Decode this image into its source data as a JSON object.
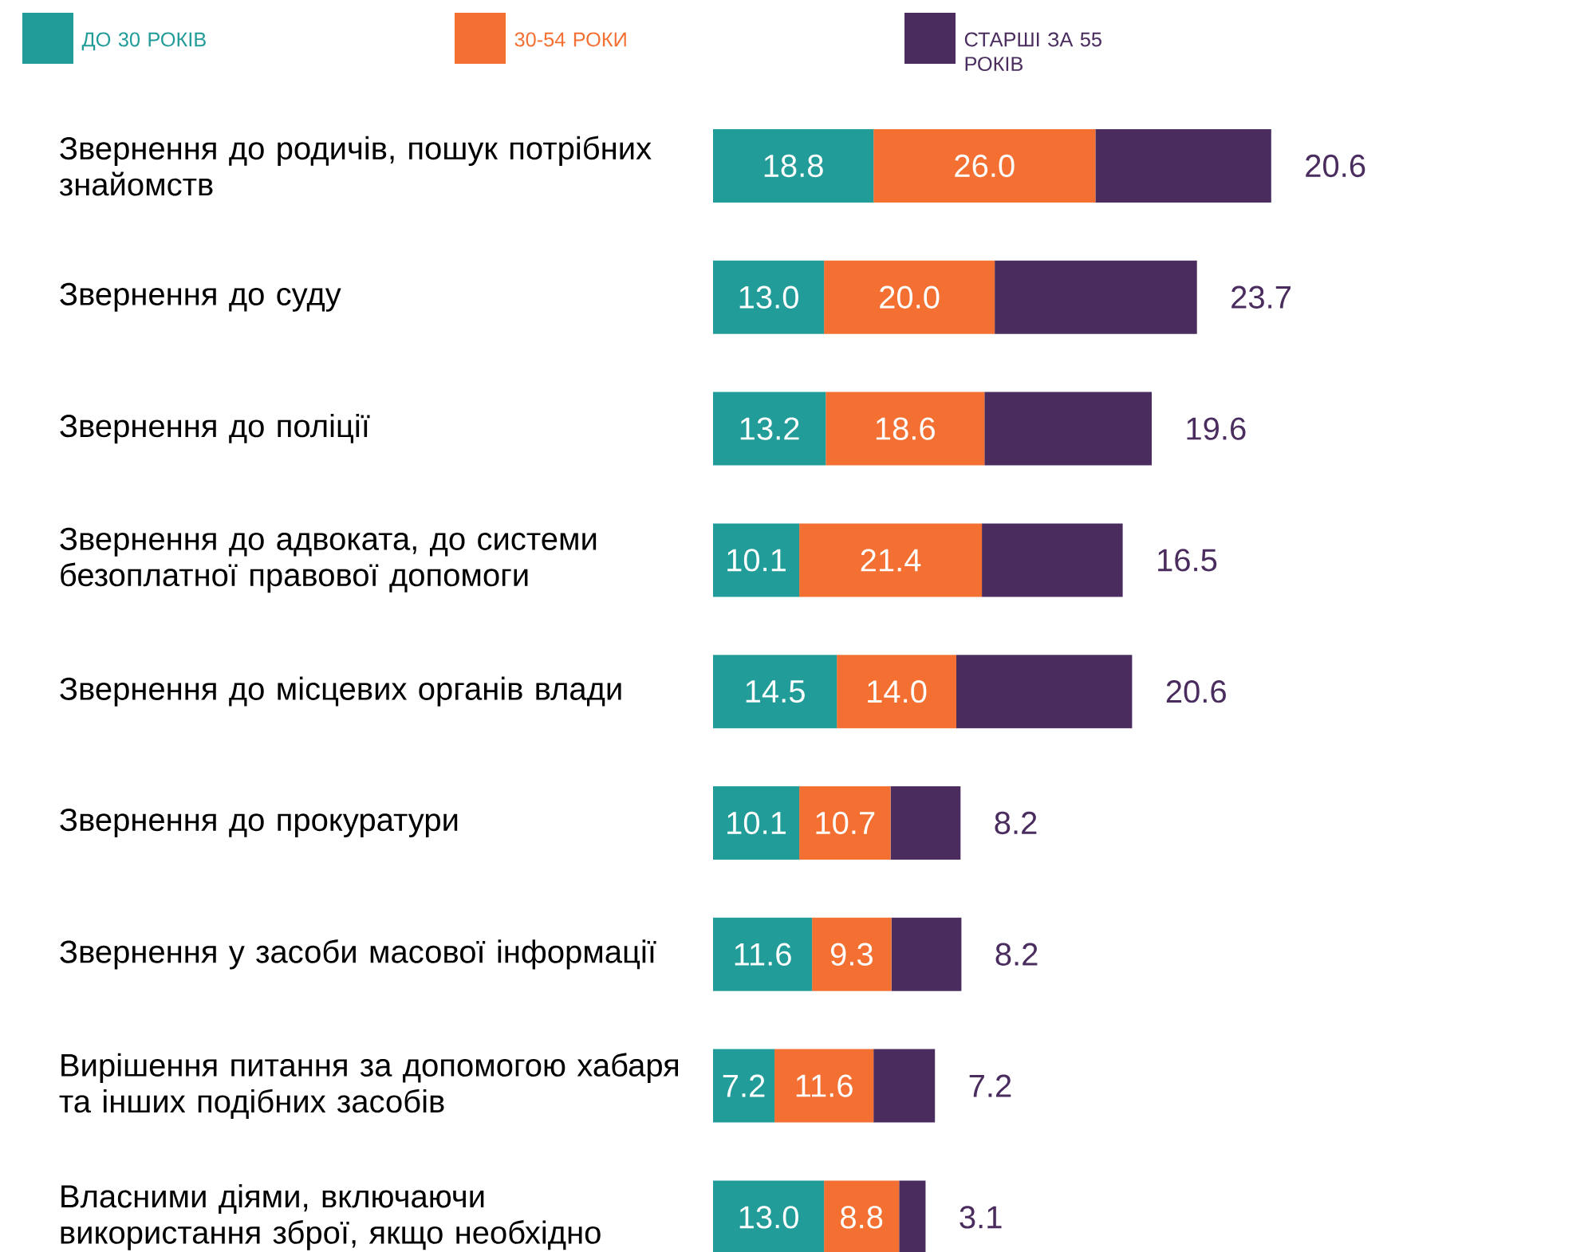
{
  "chart_data": {
    "type": "bar",
    "orientation": "horizontal",
    "stacked": true,
    "legend": "top",
    "tick_labels": "y",
    "categories": [
      "Звернення до родичів, пошук потрібних знайомств",
      "Звернення до суду",
      "Звернення до поліції",
      "Звернення до адвоката, до системи безоплатної правової допомоги",
      "Звернення до місцевих органів влади",
      "Звернення до прокуратури",
      "Звернення у засоби масової інформації",
      "Вирішення питання за допомогою хабаря та інших подібних засобів",
      "Власними діями, включаючи використання зброї, якщо необхідно"
    ],
    "series": [
      {
        "name": "ДО 30 РОКІВ",
        "color": "#219c98",
        "values": [
          18.8,
          13.0,
          13.2,
          10.1,
          14.5,
          10.1,
          11.6,
          7.2,
          13.0
        ],
        "value_labels": [
          "18.8",
          "13.0",
          "13.2",
          "10.1",
          "14.5",
          "10.1",
          "11.6",
          "7.2",
          "13.0"
        ]
      },
      {
        "name": "30-54 РОКИ",
        "color": "#f37032",
        "values": [
          26.0,
          20.0,
          18.6,
          21.4,
          14.0,
          10.7,
          9.3,
          11.6,
          8.8
        ],
        "value_labels": [
          "26.0",
          "20.0",
          "18.6",
          "21.4",
          "14.0",
          "10.7",
          "9.3",
          "11.6",
          "8.8"
        ]
      },
      {
        "name": "СТАРШІ ЗА 55 РОКІВ",
        "color": "#4a2d5e",
        "values": [
          20.6,
          23.7,
          19.6,
          16.5,
          20.6,
          8.2,
          8.2,
          7.2,
          3.1
        ],
        "value_labels": [
          "20.6",
          "23.7",
          "19.6",
          "16.5",
          "20.6",
          "8.2",
          "8.2",
          "7.2",
          "3.1"
        ]
      }
    ]
  }
}
